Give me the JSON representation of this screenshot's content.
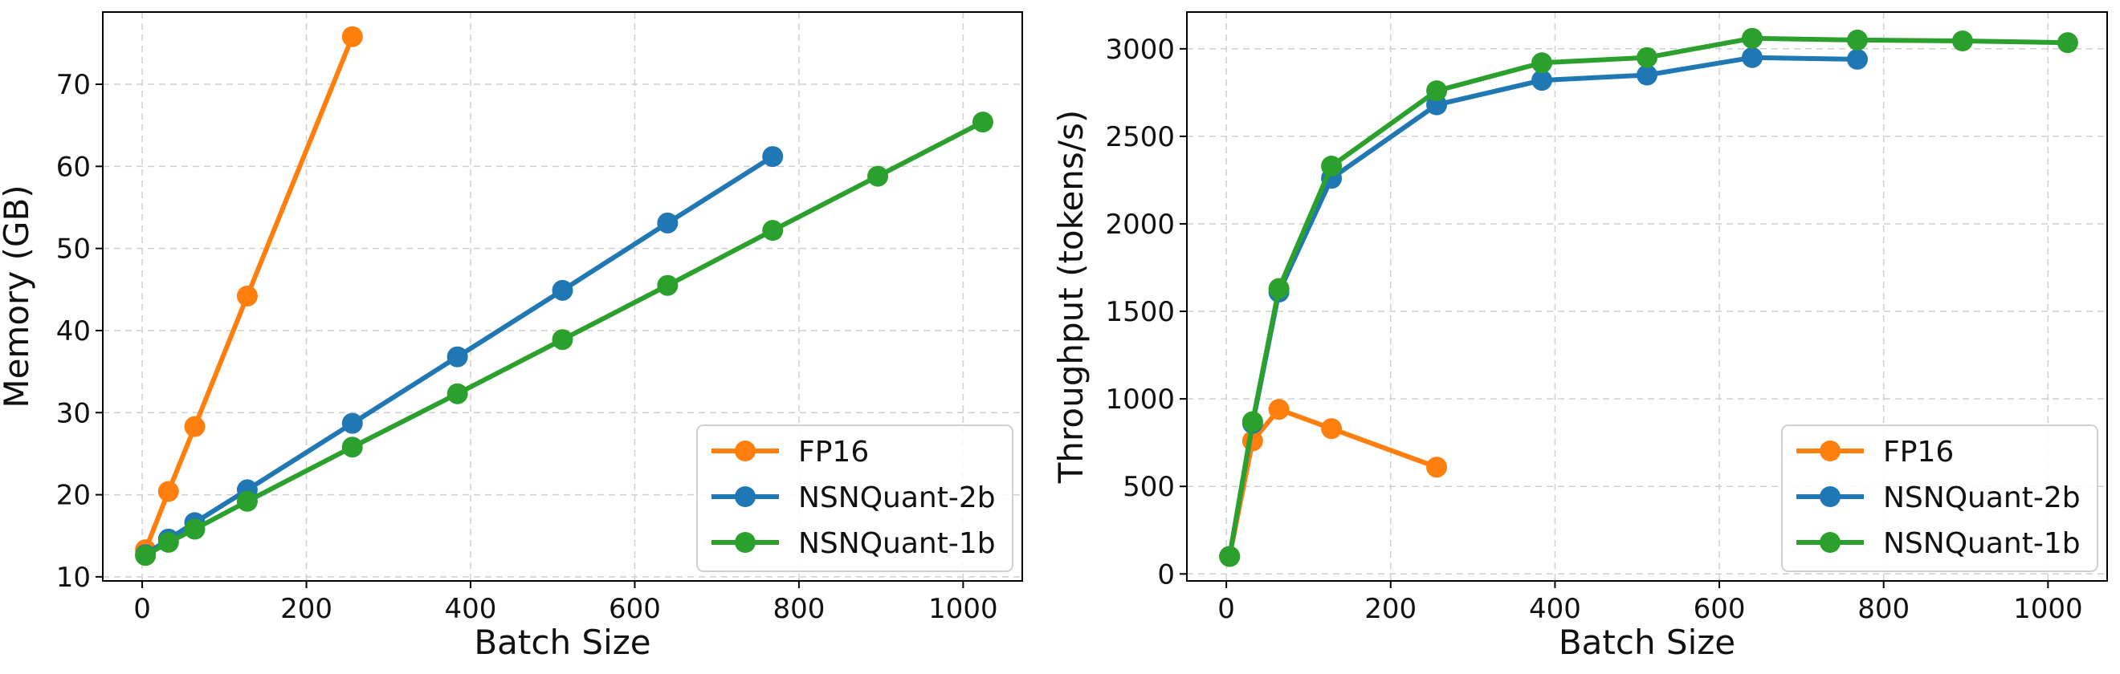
{
  "chart_data": [
    {
      "type": "line",
      "title": "",
      "xlabel": "Batch Size",
      "ylabel": "Memory (GB)",
      "xlim": [
        -48,
        1072
      ],
      "ylim": [
        9.5,
        78.8
      ],
      "xticks": [
        0,
        200,
        400,
        600,
        800,
        1000
      ],
      "yticks": [
        10,
        20,
        30,
        40,
        50,
        60,
        70
      ],
      "grid": true,
      "legend_position": "bottom-right",
      "series": [
        {
          "name": "FP16",
          "color": "#ff7f0e",
          "x": [
            4,
            32,
            64,
            128,
            256
          ],
          "y": [
            13.3,
            20.4,
            28.3,
            44.2,
            75.8
          ]
        },
        {
          "name": "NSNQuant-2b",
          "color": "#1f77b4",
          "x": [
            4,
            32,
            64,
            128,
            256,
            384,
            512,
            640,
            768
          ],
          "y": [
            12.7,
            14.6,
            16.6,
            20.6,
            28.7,
            36.8,
            44.9,
            53.1,
            61.2
          ]
        },
        {
          "name": "NSNQuant-1b",
          "color": "#2ca02c",
          "x": [
            4,
            32,
            64,
            128,
            256,
            384,
            512,
            640,
            768,
            896,
            1024
          ],
          "y": [
            12.6,
            14.2,
            15.8,
            19.2,
            25.8,
            32.3,
            38.9,
            45.5,
            52.2,
            58.8,
            65.4
          ]
        }
      ]
    },
    {
      "type": "line",
      "title": "",
      "xlabel": "Batch Size",
      "ylabel": "Throughput (tokens/s)",
      "xlim": [
        -48,
        1072
      ],
      "ylim": [
        -40,
        3210
      ],
      "xticks": [
        0,
        200,
        400,
        600,
        800,
        1000
      ],
      "yticks": [
        0,
        500,
        1000,
        1500,
        2000,
        2500,
        3000
      ],
      "grid": true,
      "legend_position": "bottom-right",
      "series": [
        {
          "name": "FP16",
          "color": "#ff7f0e",
          "x": [
            4,
            32,
            64,
            128,
            256
          ],
          "y": [
            100,
            760,
            940,
            830,
            610
          ]
        },
        {
          "name": "NSNQuant-2b",
          "color": "#1f77b4",
          "x": [
            4,
            32,
            64,
            128,
            256,
            384,
            512,
            640,
            768
          ],
          "y": [
            100,
            860,
            1610,
            2260,
            2680,
            2820,
            2850,
            2950,
            2940
          ]
        },
        {
          "name": "NSNQuant-1b",
          "color": "#2ca02c",
          "x": [
            4,
            32,
            64,
            128,
            256,
            384,
            512,
            640,
            768,
            896,
            1024
          ],
          "y": [
            100,
            870,
            1630,
            2330,
            2760,
            2920,
            2950,
            3060,
            3050,
            3045,
            3035
          ]
        }
      ]
    }
  ]
}
